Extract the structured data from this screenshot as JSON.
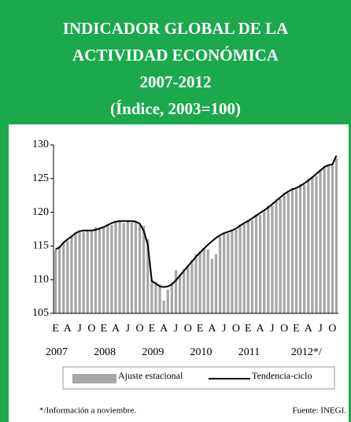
{
  "chart_data": {
    "type": "bar_line",
    "title": [
      "INDICADOR GLOBAL DE LA",
      "ACTIVIDAD ECONÓMICA",
      "2007-2012",
      "(Índice, 2003=100)"
    ],
    "categories": [
      "E",
      null,
      null,
      "A",
      null,
      null,
      "J",
      null,
      null,
      "O",
      null,
      null,
      "E",
      null,
      null,
      "A",
      null,
      null,
      "J",
      null,
      null,
      "O",
      null,
      null,
      "E",
      null,
      null,
      "A",
      null,
      null,
      "J",
      null,
      null,
      "O",
      null,
      null,
      "E",
      null,
      null,
      "A",
      null,
      null,
      "J",
      null,
      null,
      "O",
      null,
      null,
      "E",
      null,
      null,
      "A",
      null,
      null,
      "J",
      null,
      null,
      "O",
      null,
      null,
      "E",
      null,
      null,
      "A",
      null,
      null,
      "J",
      null,
      null,
      "O",
      null
    ],
    "years": [
      "2007",
      "2008",
      "2009",
      "2010",
      "2011",
      "2012*/"
    ],
    "series": [
      {
        "name": "Ajuste estacional",
        "color": "#a6a6a6",
        "kind": "bar",
        "values": [
          114.4,
          115.0,
          115.6,
          115.8,
          116.6,
          117.0,
          117.2,
          117.1,
          117.4,
          117.2,
          117.8,
          117.5,
          117.9,
          118.3,
          118.1,
          118.5,
          118.6,
          118.4,
          118.7,
          118.5,
          118.6,
          118.2,
          118.0,
          116.0,
          110.0,
          109.7,
          109.3,
          106.9,
          108.5,
          109.6,
          111.4,
          110.8,
          111.6,
          112.2,
          112.9,
          113.8,
          114.2,
          114.7,
          114.5,
          113.1,
          113.8,
          116.4,
          117.0,
          116.9,
          117.5,
          117.4,
          118.2,
          118.3,
          118.9,
          118.8,
          119.7,
          119.6,
          120.4,
          121.0,
          121.0,
          121.9,
          122.0,
          122.9,
          123.0,
          123.6,
          123.4,
          124.2,
          124.1,
          125.0,
          125.3,
          125.4,
          126.4,
          126.9,
          127.1,
          127.0,
          128.0
        ]
      },
      {
        "name": "Tendencia-ciclo",
        "color": "#000000",
        "kind": "line",
        "values": [
          114.5,
          114.8,
          115.5,
          116.0,
          116.4,
          116.9,
          117.2,
          117.3,
          117.3,
          117.3,
          117.4,
          117.6,
          117.8,
          118.1,
          118.4,
          118.6,
          118.7,
          118.7,
          118.7,
          118.7,
          118.6,
          118.3,
          117.2,
          115.2,
          109.8,
          109.4,
          109.0,
          108.9,
          109.0,
          109.3,
          109.9,
          110.6,
          111.3,
          112.0,
          112.7,
          113.4,
          114.0,
          114.6,
          115.2,
          115.7,
          116.2,
          116.6,
          116.9,
          117.1,
          117.3,
          117.6,
          118.0,
          118.4,
          118.7,
          119.1,
          119.5,
          119.9,
          120.3,
          120.7,
          121.2,
          121.7,
          122.2,
          122.7,
          123.1,
          123.4,
          123.6,
          123.9,
          124.3,
          124.7,
          125.2,
          125.7,
          126.2,
          126.7,
          127.0,
          127.1,
          128.4
        ]
      }
    ],
    "ylim": [
      105,
      130
    ],
    "yticks": [
      105,
      110,
      115,
      120,
      125,
      130
    ],
    "header_color": "#1ba94c",
    "footnote": "*/Información a noviembre.",
    "source": "Fuente: INEGI."
  }
}
